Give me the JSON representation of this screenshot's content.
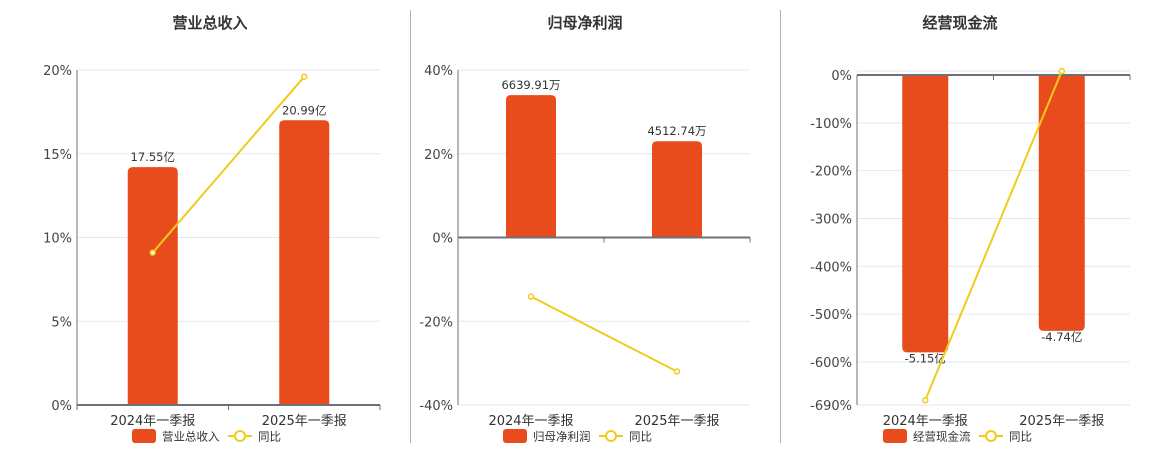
{
  "colors": {
    "bar": "#E84C1C",
    "line": "#F0CC1A",
    "grid": "#E3E7EF",
    "axis": "#6E7079"
  },
  "legend_line_label": "同比",
  "chart_data": [
    {
      "type": "bar+line",
      "title": "营业总收入",
      "categories": [
        "2024年一季报",
        "2025年一季报"
      ],
      "series": [
        {
          "name": "营业总收入",
          "type": "bar",
          "values": [
            17.55,
            20.99
          ],
          "unit": "亿",
          "labels": [
            "17.55亿",
            "20.99亿"
          ],
          "plotted_pct": [
            14.2,
            17.0
          ]
        },
        {
          "name": "同比",
          "type": "line",
          "values": [
            9.1,
            19.6
          ],
          "unit": "%"
        }
      ],
      "yaxis": {
        "ticks": [
          "0%",
          "5%",
          "10%",
          "15%",
          "20%"
        ],
        "ylim": [
          0,
          20
        ]
      },
      "grid": true,
      "legend_position": "bottom"
    },
    {
      "type": "bar+line",
      "title": "归母净利润",
      "categories": [
        "2024年一季报",
        "2025年一季报"
      ],
      "series": [
        {
          "name": "归母净利润",
          "type": "bar",
          "values": [
            6639.91,
            4512.74
          ],
          "unit": "万",
          "labels": [
            "6639.91万",
            "4512.74万"
          ],
          "plotted_pct": [
            34.0,
            23.0
          ]
        },
        {
          "name": "同比",
          "type": "line",
          "values": [
            -14.1,
            -32.0
          ],
          "unit": "%"
        }
      ],
      "yaxis": {
        "ticks": [
          "-40%",
          "-20%",
          "0%",
          "20%",
          "40%"
        ],
        "ylim": [
          -40,
          40
        ]
      },
      "grid": true,
      "legend_position": "bottom"
    },
    {
      "type": "bar+line",
      "title": "经营现金流",
      "categories": [
        "2024年一季报",
        "2025年一季报"
      ],
      "series": [
        {
          "name": "经营现金流",
          "type": "bar",
          "values": [
            -5.15,
            -4.74
          ],
          "unit": "亿",
          "labels": [
            "-5.15亿",
            "-4.74亿"
          ],
          "plotted_pct": [
            -580,
            -535
          ]
        },
        {
          "name": "同比",
          "type": "line",
          "values": [
            -680,
            8
          ],
          "unit": "%"
        }
      ],
      "yaxis": {
        "ticks": [
          "-690%",
          "-600%",
          "-500%",
          "-400%",
          "-300%",
          "-200%",
          "-100%",
          "0%"
        ],
        "ylim": [
          -690,
          0
        ]
      },
      "grid": true,
      "legend_position": "bottom"
    }
  ]
}
